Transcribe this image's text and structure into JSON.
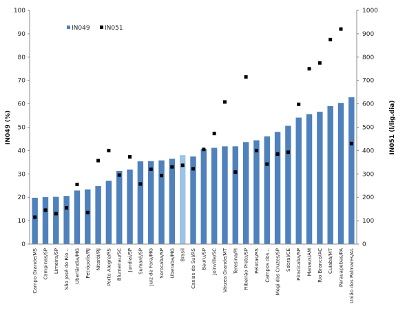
{
  "chart_data": {
    "type": "bar",
    "categories": [
      "Campo Grande/MS",
      "Campinas/SP",
      "Limeira/SP",
      "São José do Rio...",
      "Uberlândia/MG",
      "Petrópolis/RJ",
      "Niterói/RJ",
      "Porto Alegre/RS",
      "Blumenau/SC",
      "Jundiaí/SP",
      "Sumaré/SP",
      "Juiz de Fora/MG",
      "Sorocaba/SP",
      "Uberaba/MG",
      "Brasil",
      "Caxias do Sul/RS",
      "Bauru/SP",
      "Joinville/SC",
      "Várzea Grande/MT",
      "Teresina/PI",
      "Ribeirão Preto/SP",
      "Pelotas/RS",
      "Campos dos...",
      "Mogi das Cruzes/SP",
      "Sobral/CE",
      "Piracicaba/SP",
      "Manaus/AM",
      "Rio Branco/AC",
      "Cuiabá/MT",
      "Parauapebas/PA",
      "União dos Palmares/AL"
    ],
    "series": [
      {
        "name": "IN049",
        "axis": "left",
        "kind": "bar",
        "color": "#4f81bd",
        "highlight_color": "#9dc3e6",
        "highlight_category": "Brasil",
        "values": [
          19.8,
          20.1,
          20.2,
          20.6,
          22.9,
          23.4,
          24.8,
          27.1,
          31.3,
          31.9,
          35.4,
          35.5,
          35.8,
          36.5,
          38.0,
          37.5,
          40.7,
          41.2,
          41.8,
          41.8,
          43.6,
          44.4,
          46.1,
          48.0,
          50.6,
          54.1,
          55.6,
          56.6,
          59.0,
          60.4,
          62.8
        ]
      },
      {
        "name": "IN051",
        "axis": "right",
        "kind": "marker",
        "color": "#000000",
        "values": [
          115,
          145,
          130,
          155,
          255,
          135,
          357,
          400,
          295,
          373,
          257,
          320,
          293,
          330,
          337,
          322,
          405,
          473,
          608,
          308,
          715,
          400,
          342,
          385,
          393,
          598,
          750,
          775,
          875,
          920,
          430
        ]
      }
    ],
    "ylabel_left": "IN049 (%)",
    "ylabel_right": "IN051 (l/lig.dia)",
    "ylim_left": [
      0,
      100
    ],
    "ylim_right": [
      0,
      1000
    ],
    "yticks_left": [
      "0",
      "10",
      "20",
      "30",
      "40",
      "50",
      "60",
      "70",
      "80",
      "90",
      "100"
    ],
    "yticks_right": [
      "0",
      "100",
      "200",
      "300",
      "400",
      "500",
      "600",
      "700",
      "800",
      "900",
      "1000"
    ],
    "grid": false,
    "legend": {
      "placement": "top-left",
      "items": [
        "IN049",
        "IN051"
      ]
    }
  }
}
